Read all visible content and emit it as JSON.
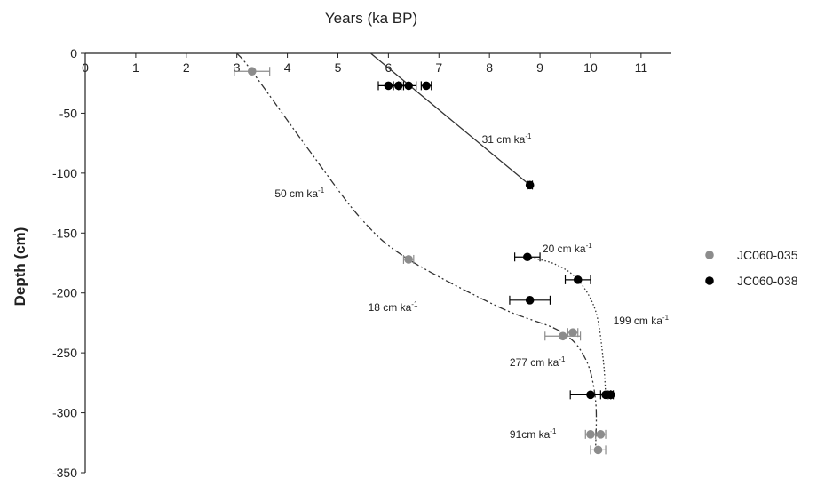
{
  "chart_data": {
    "type": "scatter",
    "title": "Years (ka BP)",
    "xlabel": "",
    "ylabel": "Depth (cm)",
    "xlim": [
      0,
      11.6
    ],
    "ylim": [
      -350,
      0
    ],
    "x_ticks": [
      0,
      1,
      2,
      3,
      4,
      5,
      6,
      7,
      8,
      9,
      10,
      11
    ],
    "y_ticks": [
      0,
      -50,
      -100,
      -150,
      -200,
      -250,
      -300,
      -350
    ],
    "x_axis_position": "top",
    "grid": false,
    "legend_position": "right",
    "colors": {
      "JC060-035": "#8c8c8c",
      "JC060-038": "#000000"
    },
    "series": [
      {
        "name": "JC060-035",
        "color": "#8c8c8c",
        "points": [
          {
            "x": 3.3,
            "y": -15,
            "xerr": 0.35
          },
          {
            "x": 6.4,
            "y": -172,
            "xerr": 0.1
          },
          {
            "x": 9.45,
            "y": -236,
            "xerr": 0.35
          },
          {
            "x": 9.65,
            "y": -233,
            "xerr": 0.1
          },
          {
            "x": 10.0,
            "y": -318,
            "xerr": 0.1
          },
          {
            "x": 10.2,
            "y": -318,
            "xerr": 0.1
          },
          {
            "x": 10.15,
            "y": -331,
            "xerr": 0.15
          }
        ]
      },
      {
        "name": "JC060-038",
        "color": "#000000",
        "points": [
          {
            "x": 6.0,
            "y": -27,
            "xerr": 0.2
          },
          {
            "x": 6.2,
            "y": -27,
            "xerr": 0.1
          },
          {
            "x": 6.4,
            "y": -27,
            "xerr": 0.15
          },
          {
            "x": 6.75,
            "y": -27,
            "xerr": 0.1
          },
          {
            "x": 8.8,
            "y": -110,
            "xerr": 0.05
          },
          {
            "x": 8.75,
            "y": -170,
            "xerr": 0.25
          },
          {
            "x": 9.75,
            "y": -189,
            "xerr": 0.25
          },
          {
            "x": 8.8,
            "y": -206,
            "xerr": 0.4
          },
          {
            "x": 10.0,
            "y": -285,
            "xerr": 0.4
          },
          {
            "x": 10.3,
            "y": -285,
            "xerr": 0.1
          },
          {
            "x": 10.4,
            "y": -285,
            "xerr": 0.05
          }
        ]
      }
    ],
    "trend_lines": [
      {
        "name": "JC060-038 upper",
        "style": "solid",
        "points": [
          [
            5.65,
            0
          ],
          [
            8.8,
            -110
          ]
        ]
      },
      {
        "name": "JC060-035 age model",
        "style": "dash-dot",
        "points": [
          [
            3.0,
            0
          ],
          [
            3.3,
            -15
          ],
          [
            4.5,
            -85
          ],
          [
            5.5,
            -140
          ],
          [
            6.4,
            -172
          ],
          [
            8.2,
            -212
          ],
          [
            9.4,
            -232
          ],
          [
            9.9,
            -255
          ],
          [
            10.1,
            -290
          ],
          [
            10.1,
            -331
          ]
        ]
      },
      {
        "name": "JC060-038 lower",
        "style": "dotted",
        "points": [
          [
            8.75,
            -170
          ],
          [
            9.3,
            -176
          ],
          [
            9.75,
            -189
          ],
          [
            10.1,
            -215
          ],
          [
            10.25,
            -255
          ],
          [
            10.3,
            -285
          ]
        ]
      }
    ],
    "annotations": [
      {
        "text": "31 cm ka",
        "sup": "-1",
        "x": 7.85,
        "y": -75
      },
      {
        "text": "50 cm ka",
        "sup": "-1",
        "x": 3.75,
        "y": -120
      },
      {
        "text": "20 cm ka",
        "sup": "-1",
        "x": 9.05,
        "y": -166
      },
      {
        "text": "18 cm ka",
        "sup": "-1",
        "x": 5.6,
        "y": -215
      },
      {
        "text": "199 cm ka",
        "sup": "-1",
        "x": 10.45,
        "y": -226
      },
      {
        "text": "277 cm ka",
        "sup": "-1",
        "x": 8.4,
        "y": -261
      },
      {
        "text": "91cm ka",
        "sup": "-1",
        "x": 8.4,
        "y": -321
      }
    ]
  }
}
